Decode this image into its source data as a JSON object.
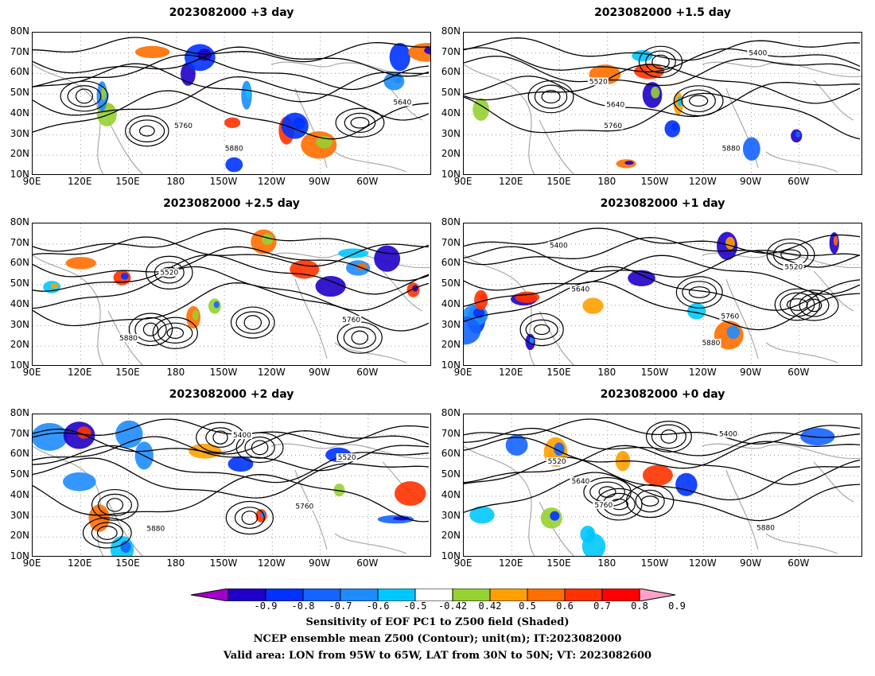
{
  "panels": [
    {
      "title": "2023082000 +3 day"
    },
    {
      "title": "2023082000 +1.5 day"
    },
    {
      "title": "2023082000 +2.5 day"
    },
    {
      "title": "2023082000 +1 day"
    },
    {
      "title": "2023082000 +2 day"
    },
    {
      "title": "2023082000 +0 day"
    }
  ],
  "axes": {
    "lat_labels": [
      "80N",
      "70N",
      "60N",
      "50N",
      "40N",
      "30N",
      "20N",
      "10N"
    ],
    "lon_labels": [
      "90E",
      "120E",
      "150E",
      "180",
      "150W",
      "120W",
      "90W",
      "60W"
    ]
  },
  "contour_labels": [
    "5400",
    "5520",
    "5640",
    "5760",
    "5880"
  ],
  "colorbar": {
    "labels": [
      "-0.9",
      "-0.8",
      "-0.7",
      "-0.6",
      "-0.5",
      "-0.42",
      "0.42",
      "0.5",
      "0.6",
      "0.7",
      "0.8",
      "0.9"
    ],
    "colors": [
      "#a000c8",
      "#1e00c8",
      "#0032ff",
      "#1464ff",
      "#1e8cff",
      "#00c8ff",
      "#ffffff",
      "#96d232",
      "#ffa000",
      "#ff6e00",
      "#ff3200",
      "#ff0000",
      "#ffa0c8"
    ]
  },
  "caption": {
    "line1": "Sensitivity of EOF PC1 to Z500 field (Shaded)",
    "line2": "NCEP ensemble mean Z500 (Contour); unit(m); IT:2023082000",
    "line3": "Valid area: LON from 95W to 65W, LAT from 30N to 50N; VT: 2023082600"
  }
}
